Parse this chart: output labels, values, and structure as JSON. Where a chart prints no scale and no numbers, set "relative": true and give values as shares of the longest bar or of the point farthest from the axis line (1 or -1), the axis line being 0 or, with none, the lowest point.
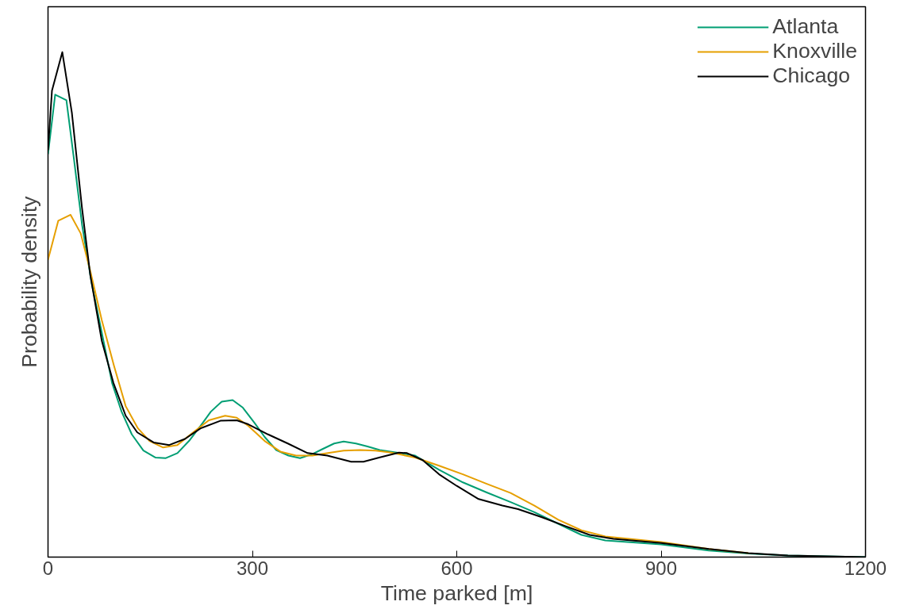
{
  "chart_data": {
    "type": "line",
    "xlabel": "Time parked [m]",
    "ylabel": "Probability density",
    "relative": true,
    "xlim": [
      0,
      1200
    ],
    "xticks": [
      0,
      300,
      600,
      900,
      1200
    ],
    "grid": false,
    "legend": "top right",
    "marker": "none",
    "line_style": "solid",
    "series": [
      {
        "name": "Atlanta",
        "color": "#009e73",
        "x": [
          0,
          10.5,
          27,
          38,
          50,
          64,
          79,
          94,
          108,
          123,
          140,
          158,
          173,
          190,
          207,
          224,
          239,
          255,
          271,
          286,
          303,
          318,
          335,
          353,
          370,
          388,
          403,
          420,
          434,
          452,
          469,
          487,
          516,
          539,
          574,
          609,
          644,
          679,
          714,
          749,
          783,
          818,
          900,
          970,
          1028,
          1086,
          1200
        ],
        "values": [
          0.798,
          0.916,
          0.905,
          0.789,
          0.658,
          0.543,
          0.444,
          0.345,
          0.288,
          0.243,
          0.211,
          0.197,
          0.196,
          0.206,
          0.23,
          0.26,
          0.288,
          0.308,
          0.311,
          0.296,
          0.266,
          0.238,
          0.212,
          0.201,
          0.196,
          0.204,
          0.214,
          0.225,
          0.229,
          0.225,
          0.219,
          0.212,
          0.206,
          0.201,
          0.173,
          0.148,
          0.128,
          0.109,
          0.089,
          0.066,
          0.044,
          0.033,
          0.025,
          0.013,
          0.007,
          0.003,
          0
        ]
      },
      {
        "name": "Knoxville",
        "color": "#e69f00",
        "x": [
          0,
          15,
          33,
          48,
          62,
          79,
          97,
          114,
          132,
          149,
          169,
          190,
          213,
          236,
          260,
          277,
          294,
          318,
          341,
          364,
          388,
          411,
          434,
          458,
          481,
          504,
          539,
          574,
          609,
          644,
          679,
          714,
          749,
          783,
          818,
          900,
          970,
          1028
        ],
        "values": [
          0.589,
          0.666,
          0.678,
          0.641,
          0.567,
          0.469,
          0.378,
          0.299,
          0.255,
          0.23,
          0.217,
          0.222,
          0.247,
          0.271,
          0.28,
          0.276,
          0.26,
          0.23,
          0.209,
          0.201,
          0.201,
          0.206,
          0.211,
          0.212,
          0.211,
          0.207,
          0.197,
          0.181,
          0.164,
          0.145,
          0.127,
          0.102,
          0.074,
          0.053,
          0.041,
          0.03,
          0.016,
          0.008
        ]
      },
      {
        "name": "Chicago",
        "color": "#000000",
        "x": [
          0,
          5.8,
          21,
          35,
          50,
          62,
          79,
          96,
          114,
          131,
          155,
          178,
          201,
          224,
          253,
          277,
          294,
          323,
          352,
          381,
          410,
          445,
          463,
          486,
          515,
          527,
          550,
          574,
          600,
          632,
          667,
          690,
          725,
          760,
          795,
          830,
          900,
          970,
          1028,
          1086,
          1200
        ],
        "values": [
          0.806,
          0.924,
          1,
          0.88,
          0.69,
          0.559,
          0.428,
          0.345,
          0.28,
          0.247,
          0.227,
          0.222,
          0.234,
          0.255,
          0.27,
          0.271,
          0.263,
          0.243,
          0.225,
          0.206,
          0.201,
          0.189,
          0.189,
          0.197,
          0.207,
          0.206,
          0.192,
          0.164,
          0.141,
          0.115,
          0.102,
          0.095,
          0.079,
          0.061,
          0.044,
          0.036,
          0.028,
          0.016,
          0.008,
          0.003,
          0
        ]
      }
    ]
  }
}
